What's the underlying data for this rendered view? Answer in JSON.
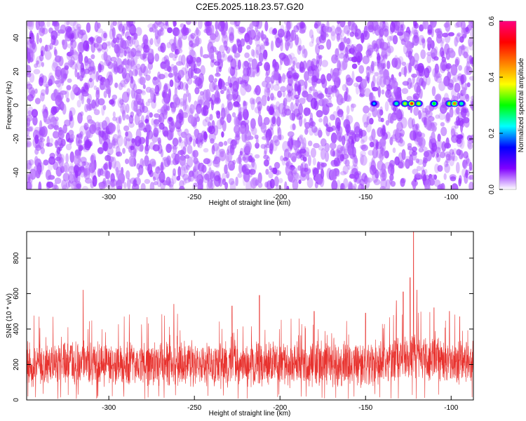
{
  "title": "C2E5.2025.118.23.57.G20",
  "chart_data": [
    {
      "type": "heatmap",
      "xlabel": "Height of straight line (km)",
      "ylabel": "Frequency (Hz)",
      "xlim": [
        -348,
        -87
      ],
      "ylim": [
        -50,
        50
      ],
      "x_ticks": [
        -300,
        -250,
        -200,
        -150,
        -100
      ],
      "x_tick_labels": [
        "-300",
        "-250",
        "-200",
        "-150",
        "-100"
      ],
      "y_ticks": [
        -40,
        -20,
        0,
        20,
        40
      ],
      "y_tick_labels": [
        "-40",
        "-20",
        "0",
        "20",
        "40"
      ],
      "colorbar": {
        "label": "Normalized spectral amplitude",
        "range": [
          0.0,
          0.6
        ],
        "ticks": [
          0.0,
          0.2,
          0.4,
          0.6
        ],
        "tick_labels": [
          "0.0",
          "0.2",
          "0.4",
          "0.6"
        ],
        "colormap": [
          "#ffffff",
          "#8000ff",
          "#0000ff",
          "#00ffff",
          "#00ff00",
          "#ffff00",
          "#ff8000",
          "#ff0000",
          "#ff0080"
        ]
      },
      "background_level": 0.08,
      "signal": {
        "frequency_hz": 1,
        "x_start": -146,
        "x_end": -93,
        "peak_values": [
          {
            "x": -145,
            "value": 0.2
          },
          {
            "x": -132,
            "value": 0.25
          },
          {
            "x": -127,
            "value": 0.35
          },
          {
            "x": -123,
            "value": 0.5
          },
          {
            "x": -119,
            "value": 0.35
          },
          {
            "x": -110,
            "value": 0.3
          },
          {
            "x": -101,
            "value": 0.35
          },
          {
            "x": -98,
            "value": 0.45
          },
          {
            "x": -94,
            "value": 0.25
          }
        ]
      },
      "grid": false
    },
    {
      "type": "line",
      "xlabel": "Height of straight line (km)",
      "ylabel": "SNR (10 * v/v)",
      "xlim": [
        -348,
        -87
      ],
      "ylim": [
        0,
        950
      ],
      "x_ticks": [
        -300,
        -250,
        -200,
        -150,
        -100
      ],
      "x_tick_labels": [
        "-300",
        "-250",
        "-200",
        "-150",
        "-100"
      ],
      "y_ticks": [
        0,
        200,
        400,
        600,
        800
      ],
      "y_tick_labels": [
        "0",
        "200",
        "400",
        "600",
        "800"
      ],
      "color": "#e8322e",
      "baseline_mean": 200,
      "baseline_spread": 130,
      "notable_peaks": [
        {
          "x": -315,
          "y": 620
        },
        {
          "x": -262,
          "y": 540
        },
        {
          "x": -228,
          "y": 530
        },
        {
          "x": -212,
          "y": 590
        },
        {
          "x": -180,
          "y": 500
        },
        {
          "x": -150,
          "y": 490
        },
        {
          "x": -132,
          "y": 560
        },
        {
          "x": -128,
          "y": 610
        },
        {
          "x": -124,
          "y": 690
        },
        {
          "x": -122,
          "y": 950
        },
        {
          "x": -120,
          "y": 620
        },
        {
          "x": -110,
          "y": 520
        },
        {
          "x": -101,
          "y": 500
        },
        {
          "x": -95,
          "y": 470
        }
      ],
      "grid": false
    }
  ]
}
